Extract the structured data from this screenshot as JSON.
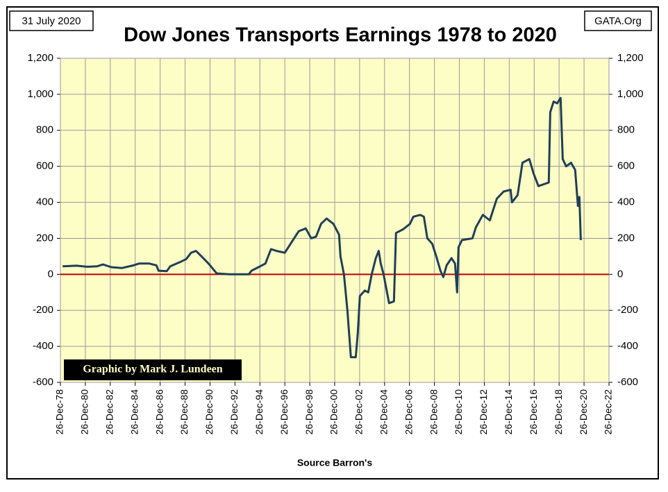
{
  "chart_data": {
    "type": "line",
    "title": "Dow Jones Transports Earnings 1978 to 2020",
    "date_note": "31 July 2020",
    "site": "GATA.Org",
    "credit": "Graphic by Mark J. Lundeen",
    "x_label": "Source Barron's",
    "grid": true,
    "background": "#fdfdc6",
    "zero_line_color": "#c00000",
    "xlim": [
      1978.99,
      2022.99
    ],
    "xticks": [
      {
        "value": 1978.99,
        "label": "26-Dec-78"
      },
      {
        "value": 1980.99,
        "label": "26-Dec-80"
      },
      {
        "value": 1982.99,
        "label": "26-Dec-82"
      },
      {
        "value": 1984.99,
        "label": "26-Dec-84"
      },
      {
        "value": 1986.99,
        "label": "26-Dec-86"
      },
      {
        "value": 1988.99,
        "label": "26-Dec-88"
      },
      {
        "value": 1990.99,
        "label": "26-Dec-90"
      },
      {
        "value": 1992.99,
        "label": "26-Dec-92"
      },
      {
        "value": 1994.99,
        "label": "26-Dec-94"
      },
      {
        "value": 1996.99,
        "label": "26-Dec-96"
      },
      {
        "value": 1998.99,
        "label": "26-Dec-98"
      },
      {
        "value": 2000.99,
        "label": "26-Dec-00"
      },
      {
        "value": 2002.99,
        "label": "26-Dec-02"
      },
      {
        "value": 2004.99,
        "label": "26-Dec-04"
      },
      {
        "value": 2006.99,
        "label": "26-Dec-06"
      },
      {
        "value": 2008.99,
        "label": "26-Dec-08"
      },
      {
        "value": 2010.99,
        "label": "26-Dec-10"
      },
      {
        "value": 2012.99,
        "label": "26-Dec-12"
      },
      {
        "value": 2014.99,
        "label": "26-Dec-14"
      },
      {
        "value": 2016.99,
        "label": "26-Dec-16"
      },
      {
        "value": 2018.99,
        "label": "26-Dec-18"
      },
      {
        "value": 2020.99,
        "label": "26-Dec-20"
      },
      {
        "value": 2022.99,
        "label": "26-Dec-22"
      }
    ],
    "ylim": [
      -600,
      1200
    ],
    "yticks": [
      -600,
      -400,
      -200,
      0,
      200,
      400,
      600,
      800,
      {
        "value": 1000,
        "label": "1,000"
      },
      {
        "value": 1200,
        "label": "1,200"
      }
    ],
    "x": [
      1979.17,
      1980.28,
      1981.12,
      1981.95,
      1982.4,
      1983.07,
      1983.9,
      1984.74,
      1985.3,
      1986.13,
      1986.69,
      1986.86,
      1987.52,
      1987.8,
      1988.64,
      1989.08,
      1989.47,
      1989.86,
      1990.31,
      1990.87,
      1991.53,
      1992.54,
      1994.1,
      1994.32,
      1994.88,
      1995.43,
      1995.88,
      1996.33,
      1996.99,
      1997.55,
      1998.11,
      1998.67,
      1999.11,
      1999.5,
      1999.89,
      2000.34,
      2000.89,
      2001.34,
      2001.45,
      2001.73,
      2002.01,
      2002.29,
      2002.68,
      2002.84,
      2003.01,
      2003.4,
      2003.68,
      2003.96,
      2004.29,
      2004.52,
      2004.68,
      2004.91,
      2005.35,
      2005.74,
      2005.91,
      2006.47,
      2007.02,
      2007.3,
      2007.86,
      2008.14,
      2008.42,
      2008.81,
      2009.14,
      2009.47,
      2009.7,
      2009.97,
      2010.36,
      2010.64,
      2010.81,
      2010.92,
      2011.2,
      2012.04,
      2012.31,
      2012.87,
      2013.43,
      2013.99,
      2014.54,
      2015.1,
      2015.21,
      2015.66,
      2016.05,
      2016.6,
      2016.94,
      2017.33,
      2018.16,
      2018.28,
      2018.55,
      2018.83,
      2019.11,
      2019.28,
      2019.56,
      2019.95,
      2020.28,
      2020.5,
      2020.62,
      2020.73
    ],
    "series": [
      {
        "name": "Earnings",
        "color": "#1f3f55",
        "values": [
          45,
          48,
          42,
          45,
          55,
          40,
          35,
          48,
          60,
          60,
          50,
          20,
          18,
          45,
          70,
          85,
          120,
          130,
          100,
          60,
          5,
          0,
          0,
          20,
          40,
          60,
          140,
          130,
          120,
          180,
          240,
          255,
          200,
          210,
          280,
          310,
          280,
          220,
          100,
          0,
          -200,
          -460,
          -460,
          -330,
          -120,
          -90,
          -100,
          0,
          90,
          130,
          60,
          0,
          -160,
          -150,
          230,
          250,
          280,
          320,
          330,
          320,
          200,
          170,
          100,
          20,
          -15,
          50,
          90,
          60,
          -100,
          150,
          190,
          200,
          260,
          330,
          300,
          420,
          460,
          470,
          400,
          440,
          620,
          640,
          560,
          490,
          510,
          900,
          960,
          950,
          980,
          640,
          600,
          620,
          580,
          380,
          430,
          190
        ]
      }
    ]
  }
}
